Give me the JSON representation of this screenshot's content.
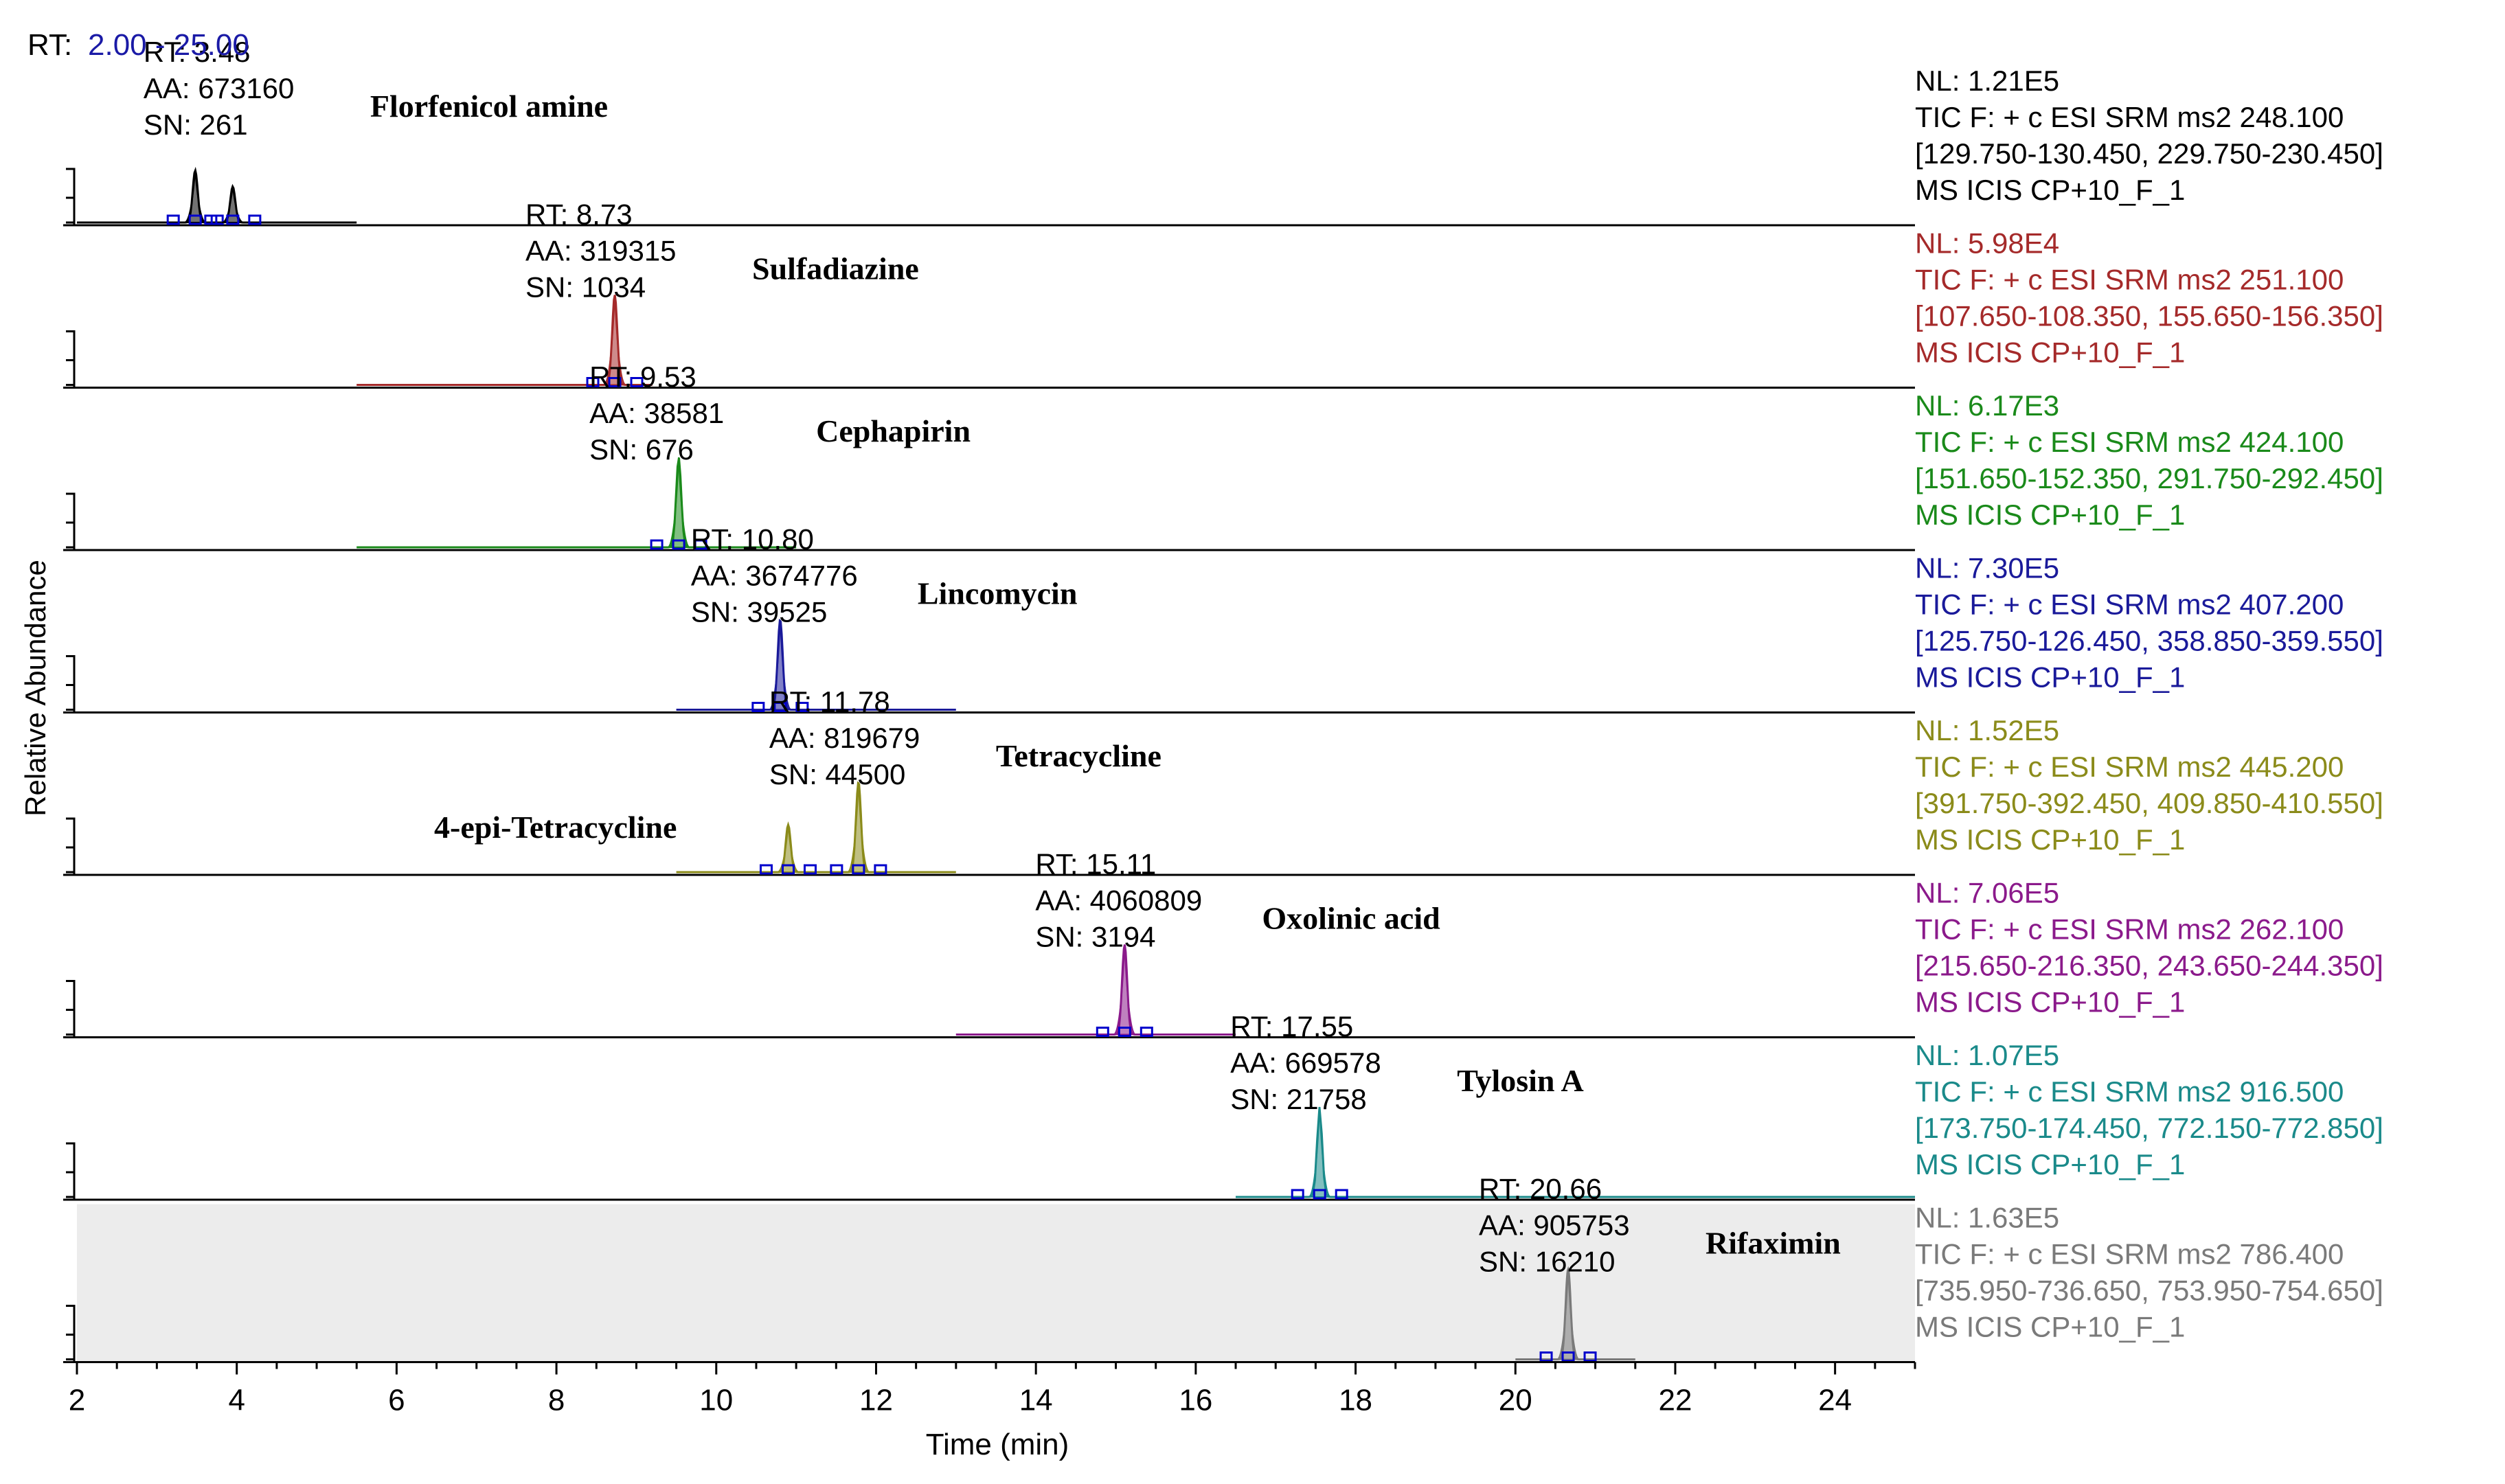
{
  "header": {
    "rt_prefix": "RT:",
    "rt_range": "2.00 - 25.00"
  },
  "ylabel": "Relative Abundance",
  "chart_data": {
    "type": "line",
    "xlabel": "Time (min)",
    "xlim": [
      2,
      25
    ],
    "xticks": [
      "2",
      "4",
      "6",
      "8",
      "10",
      "12",
      "14",
      "16",
      "18",
      "20",
      "22",
      "24"
    ],
    "colors": {
      "rt_range": "#1a1aa6",
      "header_black": "#000000",
      "shade": "#ececec",
      "peak_marker": "#0000cc"
    },
    "panels": [
      {
        "compound": "Florfenicol amine",
        "color": "#000000",
        "trace_range": [
          2.0,
          5.5
        ],
        "peaks": [
          {
            "rt": 3.48,
            "rel": 0.55
          },
          {
            "rt": 3.95,
            "rel": 0.38
          }
        ],
        "labels": {
          "rt": "RT: 3.48",
          "aa": "AA: 673160",
          "sn": "SN: 261"
        },
        "info": {
          "nl": "NL: 1.21E5",
          "tic": "TIC F: + c ESI SRM ms2 248.100",
          "range": "[129.750-130.450, 229.750-230.450]",
          "ms": "MS  ICIS CP+10_F_1"
        }
      },
      {
        "compound": "Sulfadiazine",
        "color": "#a52a2a",
        "trace_range": [
          5.5,
          9.2
        ],
        "peaks": [
          {
            "rt": 8.73,
            "rel": 0.95
          }
        ],
        "labels": {
          "rt": "RT: 8.73",
          "aa": "AA: 319315",
          "sn": "SN: 1034"
        },
        "info": {
          "nl": "NL: 5.98E4",
          "tic": "TIC F: + c ESI SRM ms2 251.100",
          "range": "[107.650-108.350, 155.650-156.350]",
          "ms": "MS  ICIS CP+10_F_1"
        }
      },
      {
        "compound": "Cephapirin",
        "color": "#1a8a1a",
        "trace_range": [
          5.5,
          11.0
        ],
        "peaks": [
          {
            "rt": 9.53,
            "rel": 0.95
          }
        ],
        "labels": {
          "rt": "RT: 9.53",
          "aa": "AA: 38581",
          "sn": "SN: 676"
        },
        "info": {
          "nl": "NL: 6.17E3",
          "tic": "TIC F: + c ESI SRM ms2 424.100",
          "range": "[151.650-152.350, 291.750-292.450]",
          "ms": "MS  ICIS CP+10_F_1"
        }
      },
      {
        "compound": "Lincomycin",
        "color": "#1a1a9a",
        "trace_range": [
          9.5,
          13.0
        ],
        "peaks": [
          {
            "rt": 10.8,
            "rel": 0.95
          }
        ],
        "labels": {
          "rt": "RT: 10.80",
          "aa": "AA: 3674776",
          "sn": "SN: 39525"
        },
        "info": {
          "nl": "NL: 7.30E5",
          "tic": "TIC F: + c ESI SRM ms2 407.200",
          "range": "[125.750-126.450, 358.850-359.550]",
          "ms": "MS  ICIS CP+10_F_1"
        }
      },
      {
        "compound": "Tetracycline",
        "extra_compound": "4-epi-Tetracycline",
        "color": "#8b8b1a",
        "trace_range": [
          9.5,
          13.0
        ],
        "peaks": [
          {
            "rt": 10.9,
            "rel": 0.5
          },
          {
            "rt": 11.78,
            "rel": 0.95
          }
        ],
        "labels": {
          "rt": "RT: 11.78",
          "aa": "AA: 819679",
          "sn": "SN: 44500"
        },
        "info": {
          "nl": "NL: 1.52E5",
          "tic": "TIC F: + c ESI SRM ms2 445.200",
          "range": "[391.750-392.450, 409.850-410.550]",
          "ms": "MS  ICIS CP+10_F_1"
        }
      },
      {
        "compound": "Oxolinic acid",
        "color": "#8b1a8b",
        "trace_range": [
          13.0,
          16.5
        ],
        "peaks": [
          {
            "rt": 15.11,
            "rel": 0.95
          }
        ],
        "labels": {
          "rt": "RT: 15.11",
          "aa": "AA: 4060809",
          "sn": "SN: 3194"
        },
        "info": {
          "nl": "NL: 7.06E5",
          "tic": "TIC F: + c ESI SRM ms2 262.100",
          "range": "[215.650-216.350, 243.650-244.350]",
          "ms": "MS  ICIS CP+10_F_1"
        }
      },
      {
        "compound": "Tylosin A",
        "color": "#1a8a8a",
        "trace_range": [
          16.5,
          25.0
        ],
        "peaks": [
          {
            "rt": 17.55,
            "rel": 0.95
          }
        ],
        "labels": {
          "rt": "RT: 17.55",
          "aa": "AA: 669578",
          "sn": "SN: 21758"
        },
        "info": {
          "nl": "NL: 1.07E5",
          "tic": "TIC F: + c ESI SRM ms2 916.500",
          "range": "[173.750-174.450, 772.150-772.850]",
          "ms": "MS  ICIS CP+10_F_1"
        }
      },
      {
        "compound": "Rifaximin",
        "color": "#7a7a7a",
        "trace_range": [
          20.0,
          21.5
        ],
        "peaks": [
          {
            "rt": 20.66,
            "rel": 0.95
          }
        ],
        "labels": {
          "rt": "RT: 20.66",
          "aa": "AA: 905753",
          "sn": "SN: 16210"
        },
        "info": {
          "nl": "NL: 1.63E5",
          "tic": "TIC F: + c ESI SRM ms2 786.400",
          "range": "[735.950-736.650, 753.950-754.650]",
          "ms": "MS  ICIS CP+10_F_1"
        }
      }
    ]
  }
}
